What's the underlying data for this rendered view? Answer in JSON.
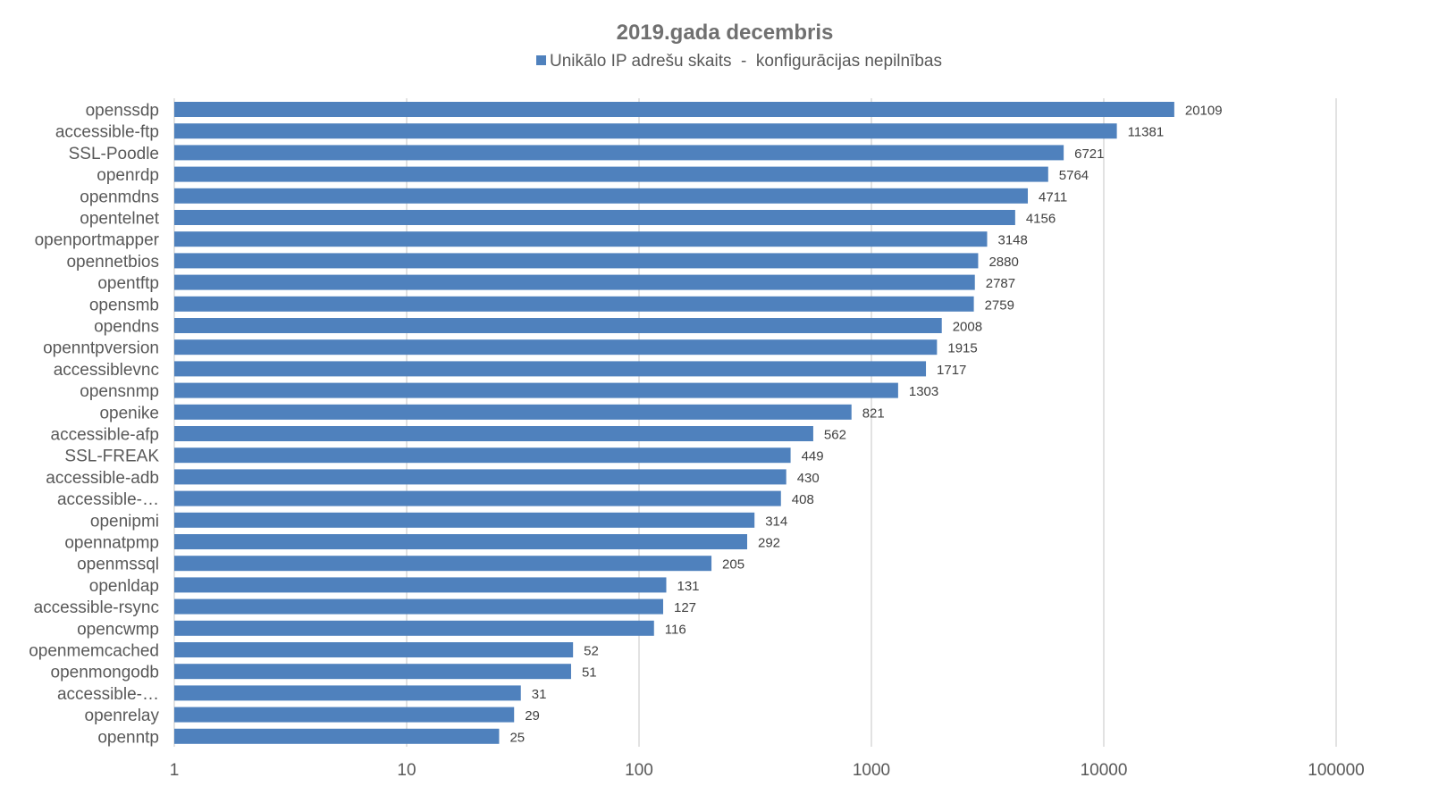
{
  "chart_data": {
    "type": "bar",
    "orientation": "horizontal",
    "title": "2019.gada decembris",
    "legend": {
      "position": "top",
      "label": "Unikālo IP adrešu skaits  -  konfigurācijas nepilnības"
    },
    "x_scale": "log",
    "xlim": [
      1,
      100000
    ],
    "x_ticks": [
      "1",
      "10",
      "100",
      "1000",
      "10000",
      "100000"
    ],
    "grid": true,
    "bar_color": "#4f81bd",
    "categories": [
      "openssdp",
      "accessible-ftp",
      "SSL-Poodle",
      "openrdp",
      "openmdns",
      "opentelnet",
      "openportmapper",
      "opennetbios",
      "opentftp",
      "opensmb",
      "opendns",
      "openntpversion",
      "accessiblevnc",
      "opensnmp",
      "openike",
      "accessible-afp",
      "SSL-FREAK",
      "accessible-adb",
      "accessible-…",
      "openipmi",
      "opennatpmp",
      "openmssql",
      "openldap",
      "accessible-rsync",
      "opencwmp",
      "openmemcached",
      "openmongodb",
      "accessible-…",
      "openrelay",
      "openntp"
    ],
    "series": [
      {
        "name": "Unikālo IP adrešu skaits  -  konfigurācijas nepilnības",
        "values": [
          20109,
          11381,
          6721,
          5764,
          4711,
          4156,
          3148,
          2880,
          2787,
          2759,
          2008,
          1915,
          1717,
          1303,
          821,
          562,
          449,
          430,
          408,
          314,
          292,
          205,
          131,
          127,
          116,
          52,
          51,
          31,
          29,
          25
        ]
      }
    ]
  }
}
